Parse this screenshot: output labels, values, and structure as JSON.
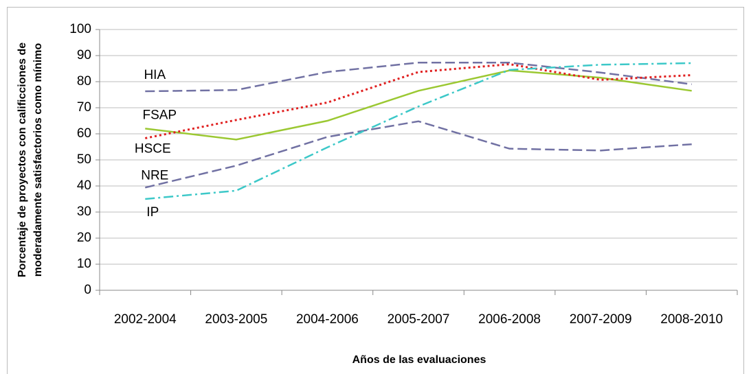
{
  "chart_data": {
    "type": "line",
    "xlabel": "Años de las evaluaciones",
    "ylabel": [
      "Porcentaje de proyectos con calificciones de",
      "moderadamente satisfactorios como mínimo"
    ],
    "categories": [
      "2002-2004",
      "2003-2005",
      "2004-2006",
      "2005-2007",
      "2006-2008",
      "2007-2009",
      "2008-2010"
    ],
    "ylim": [
      0,
      100
    ],
    "yticks": [
      0,
      10,
      20,
      30,
      40,
      50,
      60,
      70,
      80,
      90,
      100
    ],
    "grid": true,
    "series": [
      {
        "name": "HIA",
        "color": "#7171a3",
        "dash": "dashed",
        "values": [
          76.3,
          76.8,
          83.7,
          87.3,
          87.3,
          83.5,
          79
        ]
      },
      {
        "name": "FSAP",
        "color": "#9bc832",
        "dash": "solid",
        "values": [
          62,
          57.8,
          65,
          76.5,
          84.3,
          81.5,
          76.5
        ]
      },
      {
        "name": "HSCE",
        "color": "#e02020",
        "dash": "dotted",
        "values": [
          58.3,
          65.3,
          72,
          83.7,
          86.7,
          80.7,
          82.5
        ]
      },
      {
        "name": "NRE",
        "color": "#7171a3",
        "dash": "dashed",
        "values": [
          39.4,
          47.8,
          58.8,
          64.8,
          54.3,
          53.6,
          56
        ]
      },
      {
        "name": "IP",
        "color": "#3cc8c8",
        "dash": "dashdot",
        "values": [
          35,
          38.2,
          54.8,
          70.5,
          84.5,
          86.5,
          87.1
        ]
      }
    ]
  }
}
